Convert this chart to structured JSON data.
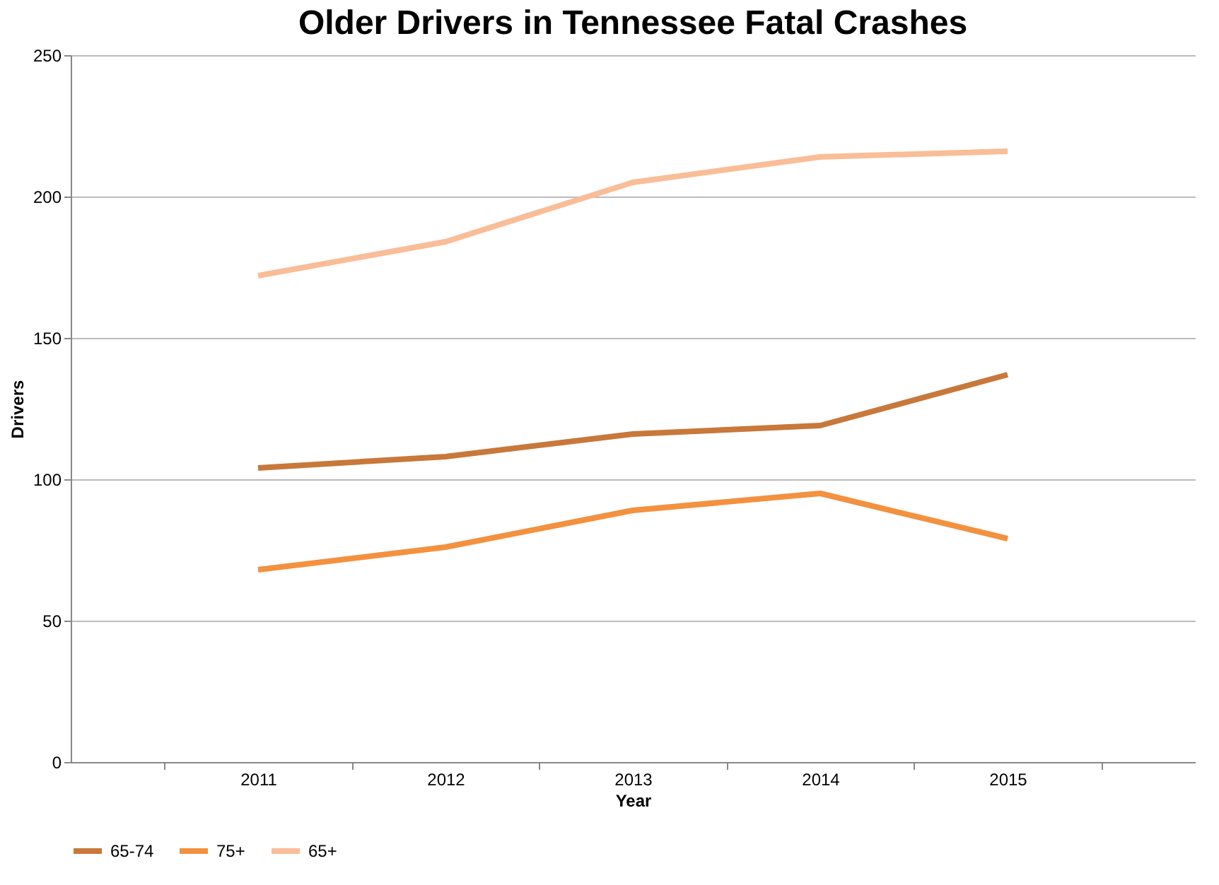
{
  "chart_data": {
    "type": "line",
    "title": "Older Drivers in Tennessee Fatal Crashes",
    "xlabel": "Year",
    "ylabel": "Drivers",
    "categories": [
      "2011",
      "2012",
      "2013",
      "2014",
      "2015"
    ],
    "series": [
      {
        "name": "65-74",
        "color": "#c8783a",
        "values": [
          104,
          108,
          116,
          119,
          137
        ]
      },
      {
        "name": "75+",
        "color": "#f3913f",
        "values": [
          68,
          76,
          89,
          95,
          79
        ]
      },
      {
        "name": "65+",
        "color": "#f9bd97",
        "values": [
          172,
          184,
          205,
          214,
          216
        ]
      }
    ],
    "ylim": [
      0,
      250
    ],
    "yticks": [
      0,
      50,
      100,
      150,
      200,
      250
    ],
    "grid": "y",
    "legend": "bottom",
    "marker": "none",
    "line_style": "solid"
  }
}
